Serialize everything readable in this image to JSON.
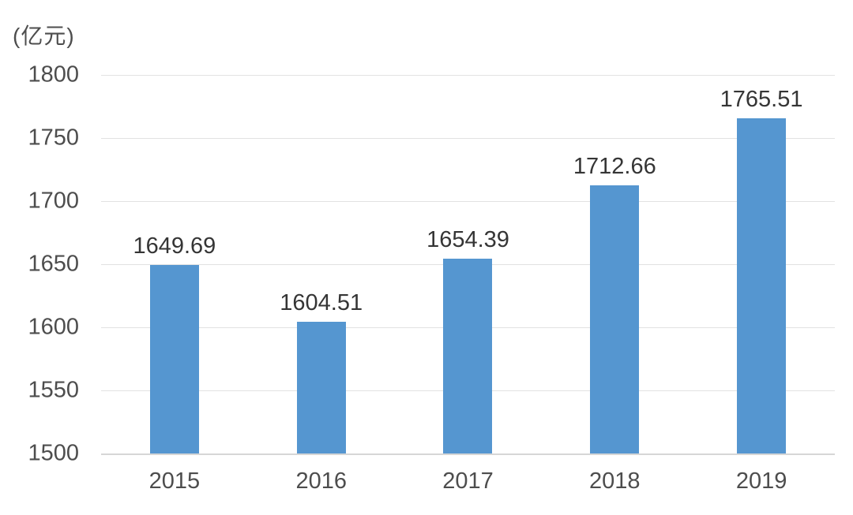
{
  "unit_label": "(亿元)",
  "colors": {
    "bar": "#5596d0",
    "gridline": "#e2e2e2",
    "axis_line": "#d6d6d6",
    "tick_text": "#4d4d4d",
    "data_label_text": "#353535",
    "background": "#ffffff"
  },
  "chart_data": {
    "type": "bar",
    "title": "",
    "xlabel": "",
    "ylabel": "(亿元)",
    "categories": [
      "2015",
      "2016",
      "2017",
      "2018",
      "2019"
    ],
    "values": [
      1649.69,
      1604.51,
      1654.39,
      1712.66,
      1765.51
    ],
    "data_labels": [
      "1649.69",
      "1604.51",
      "1654.39",
      "1712.66",
      "1765.51"
    ],
    "ylim": [
      1500,
      1800
    ],
    "yticks": [
      1500,
      1550,
      1600,
      1650,
      1700,
      1750,
      1800
    ],
    "grid": true,
    "legend": false
  }
}
